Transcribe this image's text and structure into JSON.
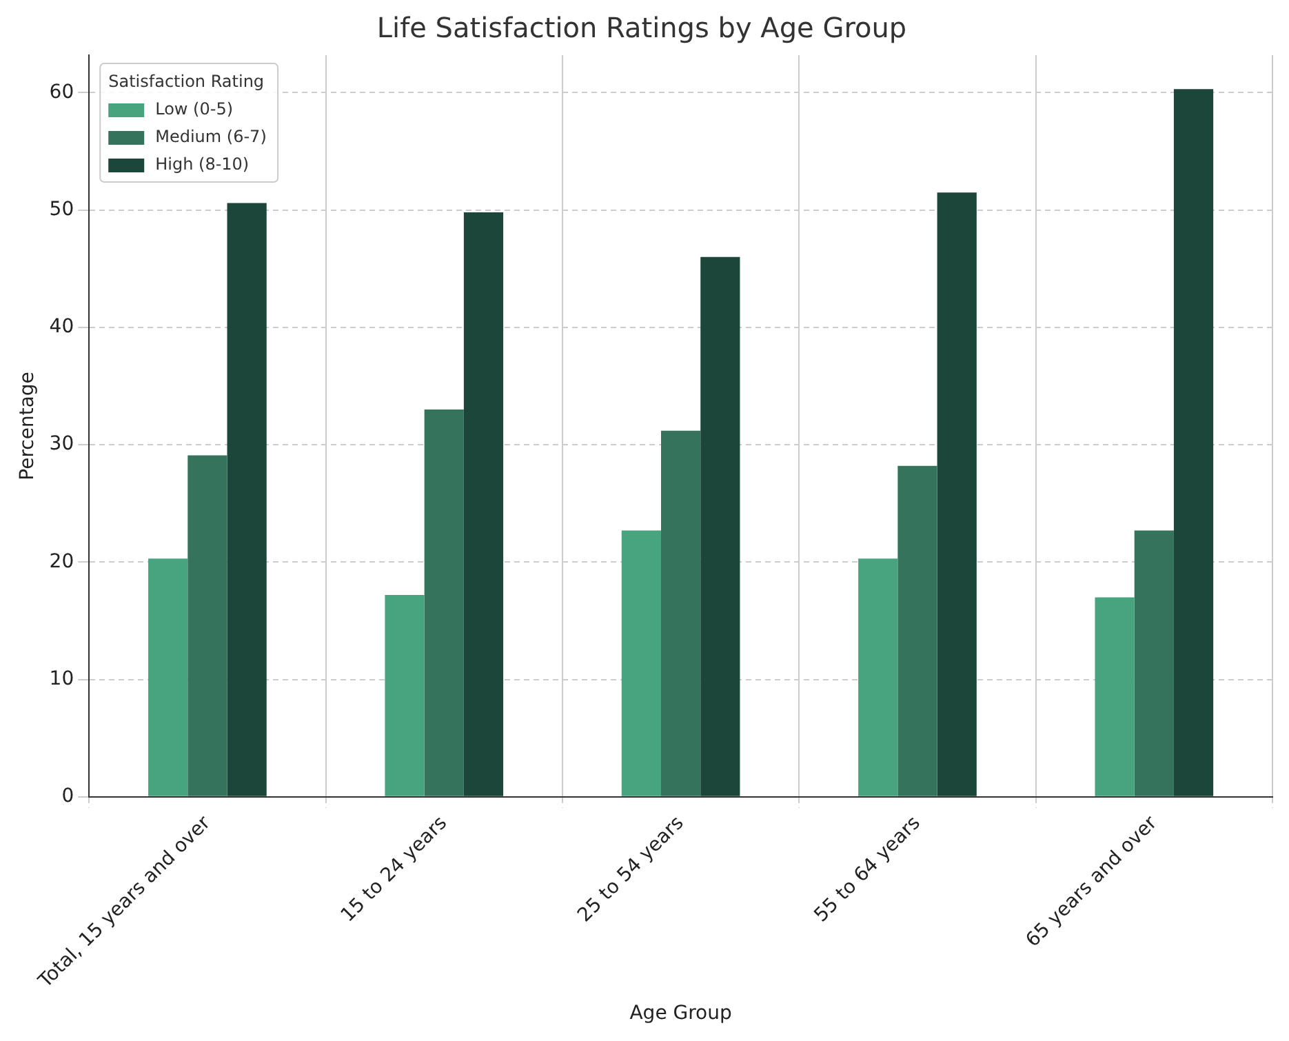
{
  "chart_data": {
    "type": "bar",
    "title": "Life Satisfaction Ratings by Age Group",
    "xlabel": "Age Group",
    "ylabel": "Percentage",
    "legend_title": "Satisfaction Rating",
    "categories": [
      "Total, 15 years and over",
      "15 to 24 years",
      "25 to 54 years",
      "55 to 64 years",
      "65 years and over"
    ],
    "series": [
      {
        "name": "Low (0-5)",
        "color": "#48a37f",
        "values": [
          20.3,
          17.2,
          22.7,
          20.3,
          17.0
        ]
      },
      {
        "name": "Medium (6-7)",
        "color": "#35735d",
        "values": [
          29.1,
          33.0,
          31.2,
          28.2,
          22.7
        ]
      },
      {
        "name": "High (8-10)",
        "color": "#1b4639",
        "values": [
          50.6,
          49.8,
          46.0,
          51.5,
          60.3
        ]
      }
    ],
    "ylim": [
      0,
      63.2
    ],
    "yticks": [
      0,
      10,
      20,
      30,
      40,
      50,
      60
    ],
    "grid": true,
    "legend": "top left"
  }
}
